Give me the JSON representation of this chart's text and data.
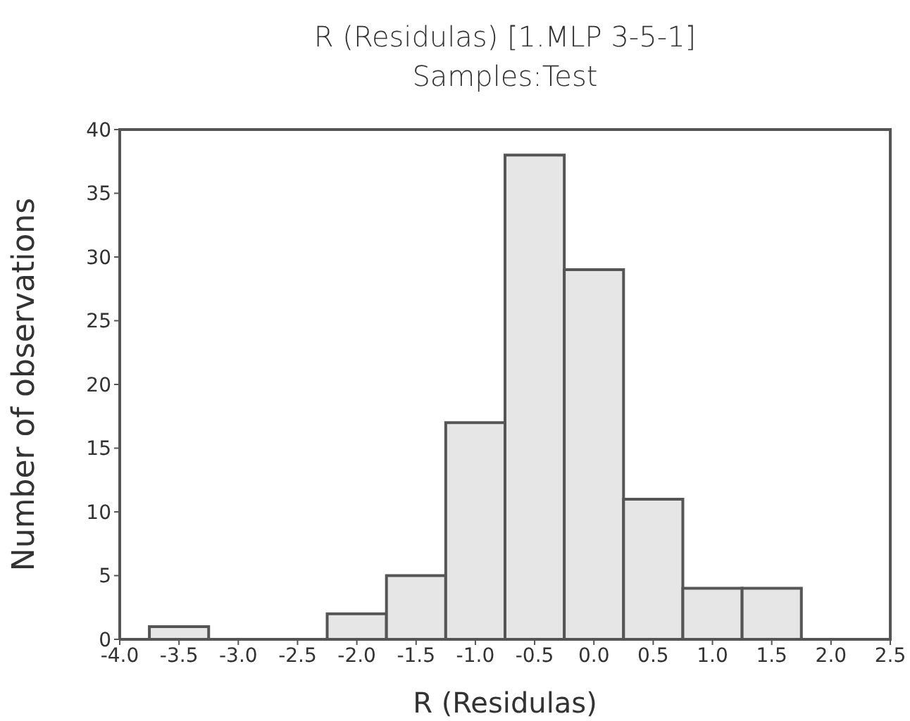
{
  "chart_data": {
    "type": "histogram",
    "title": "R (Residulas) [1.MLP 3-5-1]",
    "subtitle": "Samples:Test",
    "xlabel": "R (Residulas)",
    "ylabel": "Number of observations",
    "bins": [
      -3.75,
      -3.25,
      -2.75,
      -2.25,
      -1.75,
      -1.25,
      -0.75,
      -0.25,
      0.25,
      0.75,
      1.25,
      1.75
    ],
    "values": [
      1,
      0,
      0,
      2,
      5,
      17,
      38,
      29,
      11,
      4,
      4
    ],
    "color": "#e6e6e6",
    "xlim": [
      -4.0,
      2.5
    ],
    "xticks": [
      {
        "value": -4,
        "label": "-4.0"
      },
      {
        "value": -3.5,
        "label": "-3.5"
      },
      {
        "value": -3,
        "label": "-3.0"
      },
      {
        "value": -2.5,
        "label": "-2.5"
      },
      {
        "value": -2,
        "label": "-2.0"
      },
      {
        "value": -1.5,
        "label": "-1.5"
      },
      {
        "value": -1,
        "label": "-1.0"
      },
      {
        "value": -0.5,
        "label": "-0.5"
      },
      {
        "value": 0,
        "label": "0.0"
      },
      {
        "value": 0.5,
        "label": "0.5"
      },
      {
        "value": 1,
        "label": "1.0"
      },
      {
        "value": 1.5,
        "label": "1.5"
      },
      {
        "value": 2,
        "label": "2.0"
      },
      {
        "value": 2.5,
        "label": "2.5"
      }
    ],
    "ylim": [
      0,
      40
    ],
    "yticks": [
      0,
      5,
      10,
      15,
      20,
      25,
      30,
      35,
      40
    ],
    "grid": false
  }
}
